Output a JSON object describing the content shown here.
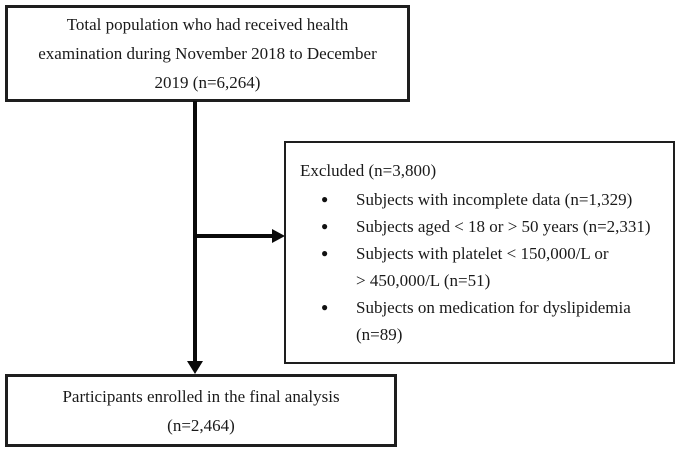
{
  "figure": {
    "type": "flowchart",
    "background": "#ffffff",
    "border_color": "#1e1e1e",
    "arrow_color": "#0a0a0a",
    "text_color": "#1a1a1a"
  },
  "flowchart": {
    "total_population_box": {
      "lines": [
        "Total population who had received health",
        "examination during November 2018 to December",
        "2019 (n=6,264)"
      ]
    },
    "excluded_box": {
      "title": "Excluded (n=3,800)",
      "bullet_glyph": "●",
      "items": [
        {
          "lines": [
            "Subjects with incomplete data (n=1,329)"
          ]
        },
        {
          "lines": [
            "Subjects aged < 18 or > 50 years (n=2,331)"
          ]
        },
        {
          "lines": [
            "Subjects with platelet < 150,000/L or",
            "> 450,000/L (n=51)"
          ]
        },
        {
          "lines": [
            "Subjects on medication for dyslipidemia",
            "(n=89)"
          ]
        }
      ]
    },
    "final_analysis_box": {
      "lines": [
        "Participants enrolled in the final analysis",
        "(n=2,464)"
      ]
    }
  }
}
